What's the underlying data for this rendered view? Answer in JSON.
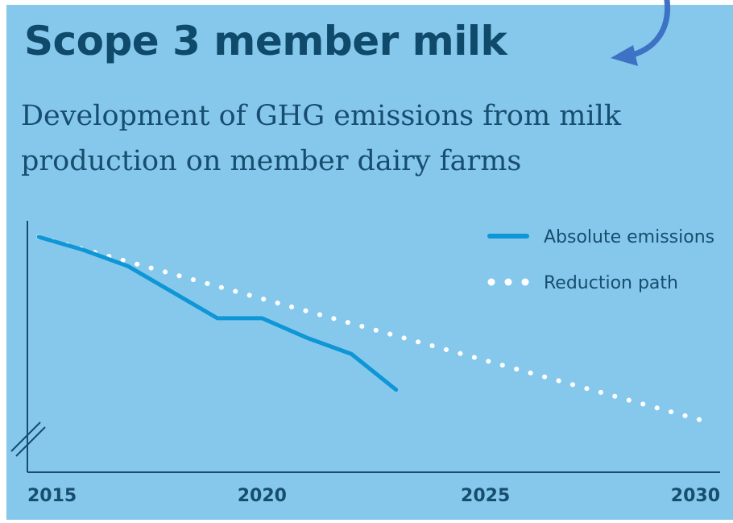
{
  "title": "Scope 3 member milk",
  "subtitle": "Development of GHG emissions from milk production on member dairy farms",
  "colors": {
    "background": "#86c8ec",
    "title": "#0f4a6b",
    "text": "#174d6e",
    "absolute_line": "#0e96d6",
    "reduction_path": "#ffffff",
    "arrow": "#3d72c4"
  },
  "chart_data": {
    "type": "line",
    "title": "Development of GHG emissions from milk production on member dairy farms",
    "xlabel": "",
    "ylabel": "",
    "xlim": [
      2015,
      2030
    ],
    "y_axis_labels": "none (axis broken at bottom)",
    "x_ticks": [
      "2015",
      "2020",
      "2025",
      "2030"
    ],
    "legend_position": "top-right",
    "series": [
      {
        "name": "Absolute emissions",
        "style": "solid",
        "x": [
          2015,
          2016,
          2017,
          2018,
          2019,
          2020,
          2021,
          2022,
          2023
        ],
        "y": [
          100,
          96,
          91,
          83,
          75,
          75,
          69,
          64,
          53
        ]
      },
      {
        "name": "Reduction path",
        "style": "dotted",
        "x": [
          2015,
          2030
        ],
        "y": [
          100,
          43
        ]
      }
    ]
  }
}
